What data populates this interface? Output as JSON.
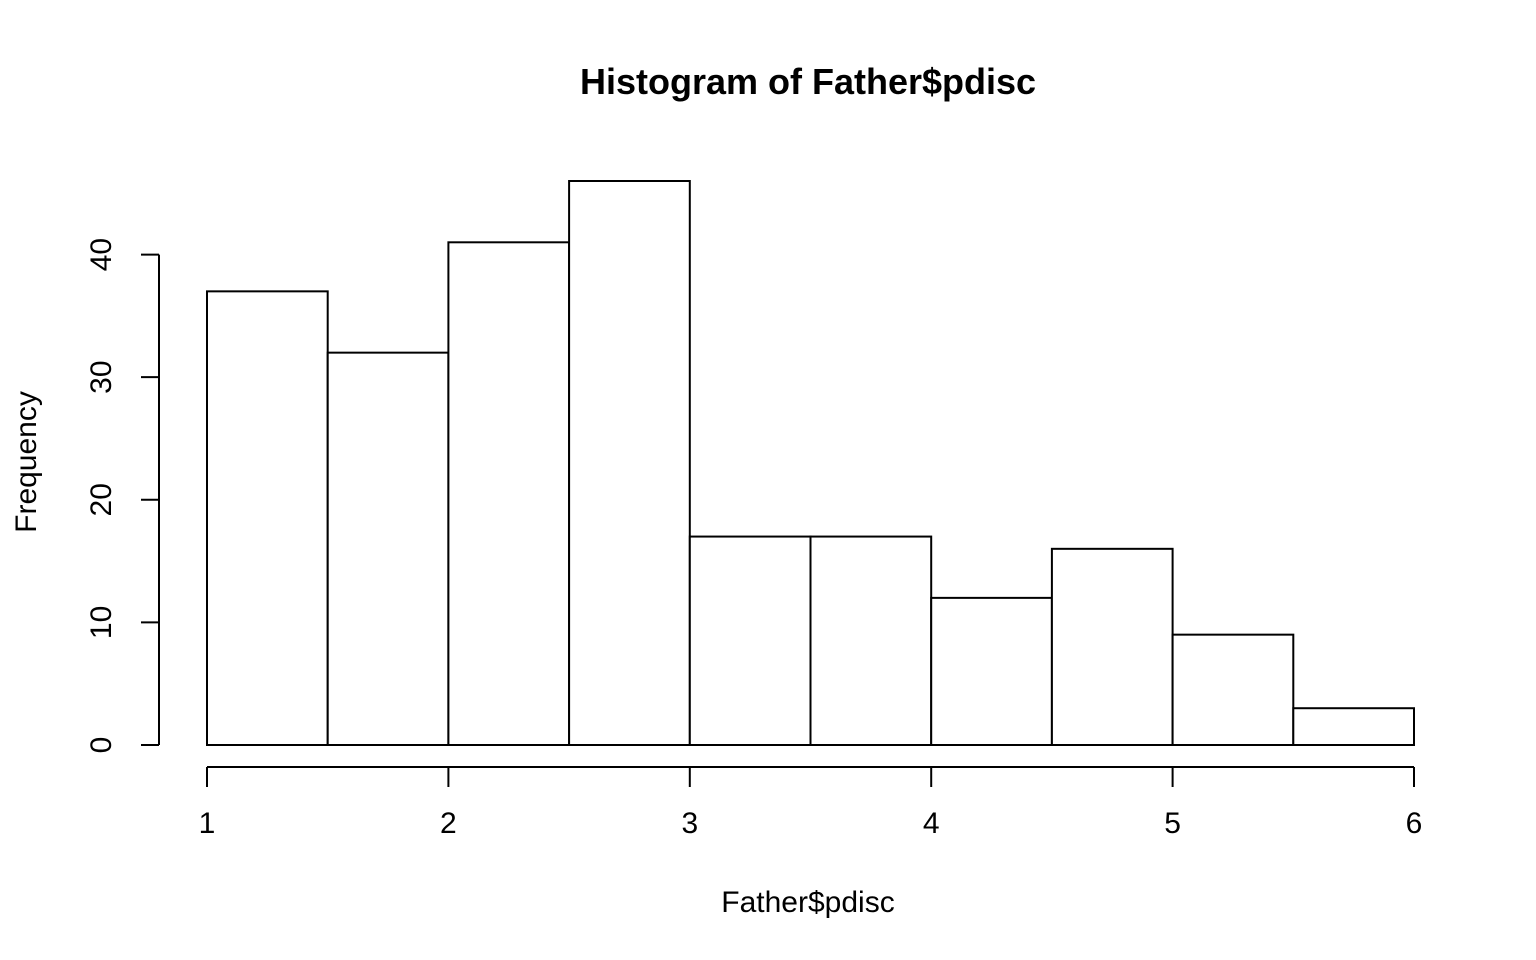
{
  "chart_data": {
    "type": "bar",
    "title": "Histogram of Father$pdisc",
    "xlabel": "Father$pdisc",
    "ylabel": "Frequency",
    "bin_edges": [
      1,
      1.5,
      2,
      2.5,
      3,
      3.5,
      4,
      4.5,
      5,
      5.5,
      6
    ],
    "values": [
      37,
      32,
      41,
      46,
      17,
      17,
      12,
      16,
      9,
      3
    ],
    "xlim": [
      1,
      6
    ],
    "ylim": [
      0,
      46
    ],
    "xticks": [
      1,
      2,
      3,
      4,
      5,
      6
    ],
    "yticks": [
      0,
      10,
      20,
      30,
      40
    ],
    "grid": false,
    "bar_fill": "#ffffff",
    "bar_stroke": "#000000"
  }
}
